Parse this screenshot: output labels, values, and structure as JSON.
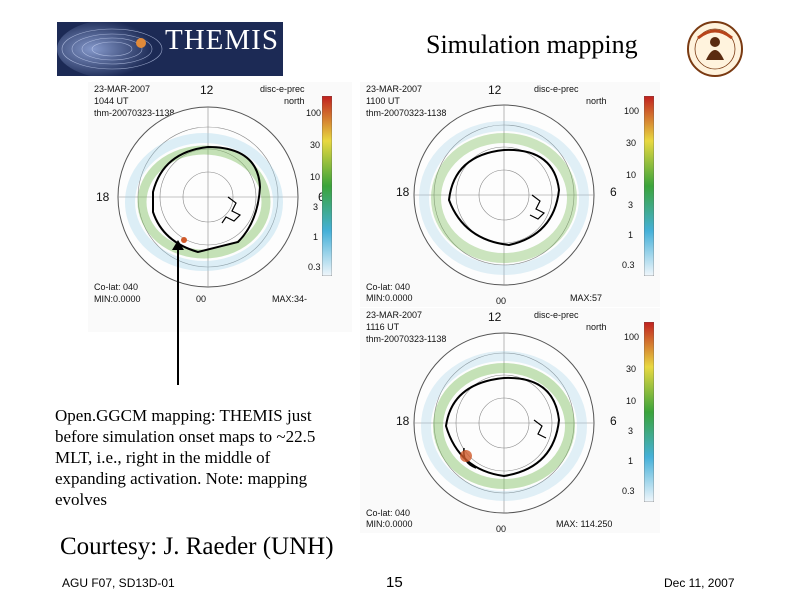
{
  "header": {
    "logo_text": "THEMIS",
    "title": "Simulation mapping"
  },
  "panels": [
    {
      "date": "23-MAR-2007",
      "time": "1044 UT",
      "run": "thm-20070323-1138",
      "hemisphere_label": "disc-e-prec",
      "hemisphere": "north",
      "min": "MIN:0.0000",
      "max": "MAX:34-",
      "clat": "Co-lat: 040",
      "scale": [
        "100",
        "30",
        "10",
        "3",
        "1",
        "0.3"
      ]
    },
    {
      "date": "23-MAR-2007",
      "time": "1100 UT",
      "run": "thm-20070323-1138",
      "hemisphere_label": "disc-e-prec",
      "hemisphere": "north",
      "min": "MIN:0.0000",
      "max": "MAX:57",
      "clat": "Co-lat: 040",
      "scale": [
        "100",
        "30",
        "10",
        "3",
        "1",
        "0.3"
      ]
    },
    {
      "date": "23-MAR-2007",
      "time": "1116 UT",
      "run": "thm-20070323-1138",
      "hemisphere_label": "disc-e-prec",
      "hemisphere": "north",
      "min": "MIN:0.0000",
      "max": "MAX: 114.250",
      "clat": "Co-lat: 040",
      "scale": [
        "100",
        "30",
        "10",
        "3",
        "1",
        "0.3"
      ]
    }
  ],
  "mlt_labels": {
    "top": "12",
    "left": "18",
    "right": "6",
    "bottom": "00"
  },
  "description": "Open.GGCM mapping: THEMIS just before simulation onset maps to ~22.5 MLT, i.e., right in the middle of expanding activation. Note: mapping evolves",
  "courtesy": "Courtesy: J. Raeder (UNH)",
  "footer": {
    "left": "AGU F07, SD13D-01",
    "center": "15",
    "right": "Dec 11, 2007"
  }
}
